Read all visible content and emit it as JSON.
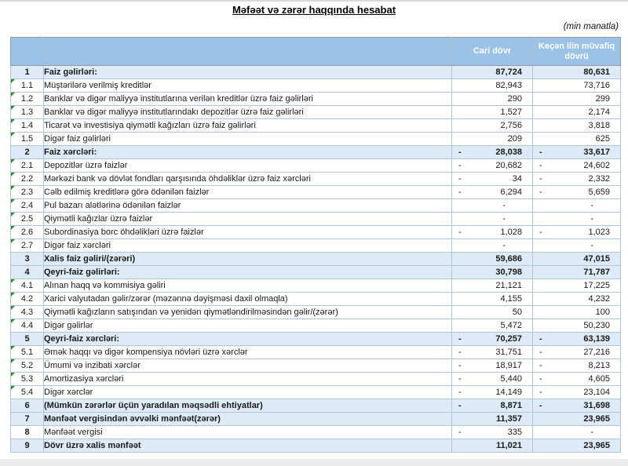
{
  "title": "Məfəət və zərər haqqında hesabat",
  "unit_note": "(min manatla)",
  "colors": {
    "header_bg": "#9CC2E5",
    "section_row_bg": "#DEEBF6",
    "header_text": "#FFFFFF",
    "marker_green": "#2E8B2E",
    "inner_border": "#B1C5D9",
    "outer_border": "#8F9CA8"
  },
  "table": {
    "header": {
      "col_number": "",
      "col_description": "",
      "col_current": "Cari dövr",
      "col_previous": "Keçən ilin müvafiq dövrü"
    },
    "rows": [
      {
        "num": "1",
        "label": "Faiz gəlirləri:",
        "style": "section",
        "marker": false,
        "c1": {
          "sign": "",
          "value": "87,724"
        },
        "c2": {
          "sign": "",
          "value": "80,631"
        }
      },
      {
        "num": "1.1",
        "label": "Müştərilərə verilmiş kreditlər",
        "style": "detail",
        "marker": true,
        "c1": {
          "sign": "",
          "value": "82,943"
        },
        "c2": {
          "sign": "",
          "value": "73,716"
        }
      },
      {
        "num": "1.2",
        "label": "Banklar və digər maliyyə institutlarına verilən kreditlər üzrə faiz gəlirləri",
        "style": "detail",
        "marker": true,
        "c1": {
          "sign": "",
          "value": "290"
        },
        "c2": {
          "sign": "",
          "value": "299"
        }
      },
      {
        "num": "1.3",
        "label": "Banklar və digər maliyyə institutlarındakı depozitlər üzrə faiz gəlirləri",
        "style": "detail",
        "marker": true,
        "c1": {
          "sign": "",
          "value": "1,527"
        },
        "c2": {
          "sign": "",
          "value": "2,174"
        }
      },
      {
        "num": "1.4",
        "label": "Ticarət və investisiya qiymətli kağızları üzrə faiz gəlirləri",
        "style": "detail",
        "marker": true,
        "c1": {
          "sign": "",
          "value": "2,756"
        },
        "c2": {
          "sign": "",
          "value": "3,818"
        }
      },
      {
        "num": "1.5",
        "label": "Digər faiz gəlirləri",
        "style": "detail",
        "marker": true,
        "c1": {
          "sign": "",
          "value": "209"
        },
        "c2": {
          "sign": "",
          "value": "625"
        }
      },
      {
        "num": "2",
        "label": "Faiz xərcləri:",
        "style": "section",
        "marker": false,
        "c1": {
          "sign": "-",
          "value": "28,038"
        },
        "c2": {
          "sign": "-",
          "value": "33,617"
        }
      },
      {
        "num": "2.1",
        "label": "Depozitlər üzrə faizlər",
        "style": "detail",
        "marker": true,
        "c1": {
          "sign": "-",
          "value": "20,682"
        },
        "c2": {
          "sign": "-",
          "value": "24,602"
        }
      },
      {
        "num": "2.2",
        "label": "Mərkəzi bank və dövlət fondları qarşısında öhdəliklər üzrə faiz xərcləri",
        "style": "detail",
        "marker": true,
        "c1": {
          "sign": "-",
          "value": "34"
        },
        "c2": {
          "sign": "-",
          "value": "2,332"
        }
      },
      {
        "num": "2.3",
        "label": "Cəlb edilmiş kreditlərə görə ödənilən faizlər",
        "style": "detail",
        "marker": true,
        "c1": {
          "sign": "-",
          "value": "6,294"
        },
        "c2": {
          "sign": "-",
          "value": "5,659"
        }
      },
      {
        "num": "2.4",
        "label": "Pul bazarı alətlərinə ödənilən faizlər",
        "style": "detail",
        "marker": true,
        "c1": {
          "sign": "",
          "value": "-",
          "zero": true
        },
        "c2": {
          "sign": "",
          "value": "-",
          "zero": true
        }
      },
      {
        "num": "2.5",
        "label": "Qiymətli kağızlar üzrə faizlər",
        "style": "detail",
        "marker": true,
        "c1": {
          "sign": "",
          "value": "-",
          "zero": true
        },
        "c2": {
          "sign": "",
          "value": "-",
          "zero": true
        }
      },
      {
        "num": "2.6",
        "label": "Subordinasiya borc öhdəlikləri üzrə faizlər",
        "style": "detail",
        "marker": true,
        "c1": {
          "sign": "-",
          "value": "1,028"
        },
        "c2": {
          "sign": "-",
          "value": "1,023"
        }
      },
      {
        "num": "2.7",
        "label": "Digər faiz xərcləri",
        "style": "detail",
        "marker": true,
        "c1": {
          "sign": "",
          "value": "-",
          "zero": true
        },
        "c2": {
          "sign": "",
          "value": "-",
          "zero": true
        }
      },
      {
        "num": "3",
        "label": "Xalis faiz gəliri/(zərəri)",
        "style": "section",
        "marker": false,
        "c1": {
          "sign": "",
          "value": "59,686"
        },
        "c2": {
          "sign": "",
          "value": "47,015"
        }
      },
      {
        "num": "4",
        "label": "Qeyri-faiz gəlirləri:",
        "style": "section",
        "marker": false,
        "c1": {
          "sign": "",
          "value": "30,798"
        },
        "c2": {
          "sign": "",
          "value": "71,787"
        }
      },
      {
        "num": "4.1",
        "label": "Alınan haqq və kommisiya gəliri",
        "style": "detail",
        "marker": true,
        "c1": {
          "sign": "",
          "value": "21,121"
        },
        "c2": {
          "sign": "",
          "value": "17,225"
        }
      },
      {
        "num": "4.2",
        "label": "Xarici valyutadan gəlir/zərər (məzənnə dəyişməsi daxil olmaqla)",
        "style": "detail",
        "marker": true,
        "c1": {
          "sign": "",
          "value": "4,155"
        },
        "c2": {
          "sign": "",
          "value": "4,232"
        }
      },
      {
        "num": "4.3",
        "label": "Qiymətli kağızların satışından və yenidən qiymətləndirilməsindən gəlir/(zərər)",
        "style": "detail",
        "marker": true,
        "c1": {
          "sign": "",
          "value": "50"
        },
        "c2": {
          "sign": "",
          "value": "100"
        }
      },
      {
        "num": "4.4",
        "label": "Digər gəlirlər",
        "style": "detail",
        "marker": true,
        "c1": {
          "sign": "",
          "value": "5,472"
        },
        "c2": {
          "sign": "",
          "value": "50,230"
        }
      },
      {
        "num": "5",
        "label": "Qeyri-faiz xərcləri:",
        "style": "section",
        "marker": false,
        "c1": {
          "sign": "-",
          "value": "70,257"
        },
        "c2": {
          "sign": "-",
          "value": "63,139"
        }
      },
      {
        "num": "5.1",
        "label": "Əmək haqqı və digər kompensiya növləri üzrə xərclər",
        "style": "detail",
        "marker": true,
        "c1": {
          "sign": "-",
          "value": "31,751"
        },
        "c2": {
          "sign": "-",
          "value": "27,216"
        }
      },
      {
        "num": "5.2",
        "label": "Ümumi və inzibati xərclər",
        "style": "detail",
        "marker": true,
        "c1": {
          "sign": "-",
          "value": "18,917"
        },
        "c2": {
          "sign": "-",
          "value": "8,213"
        }
      },
      {
        "num": "5.3",
        "label": "Amortizasiya xərcləri",
        "style": "detail",
        "marker": true,
        "c1": {
          "sign": "-",
          "value": "5,440"
        },
        "c2": {
          "sign": "-",
          "value": "4,605"
        }
      },
      {
        "num": "5.4",
        "label": "Digər xərclər",
        "style": "detail",
        "marker": true,
        "c1": {
          "sign": "-",
          "value": "14,149"
        },
        "c2": {
          "sign": "-",
          "value": "23,104"
        }
      },
      {
        "num": "6",
        "label": "(Mümkün zərərlər üçün yaradılan məqsədli ehtiyatlar)",
        "style": "section",
        "marker": false,
        "c1": {
          "sign": "-",
          "value": "8,871"
        },
        "c2": {
          "sign": "-",
          "value": "31,698"
        }
      },
      {
        "num": "7",
        "label": "Mənfəət vergisindən əvvəlki mənfəət(zərər)",
        "style": "section",
        "marker": false,
        "c1": {
          "sign": "",
          "value": "11,357"
        },
        "c2": {
          "sign": "",
          "value": "23,965"
        }
      },
      {
        "num": "8",
        "label": "Mənfəət vergisi",
        "style": "tax",
        "marker": false,
        "c1": {
          "sign": "-",
          "value": "335"
        },
        "c2": {
          "sign": "",
          "value": "-",
          "zero": true
        }
      },
      {
        "num": "9",
        "label": "Dövr üzrə xalis mənfəət",
        "style": "section",
        "marker": false,
        "c1": {
          "sign": "",
          "value": "11,021"
        },
        "c2": {
          "sign": "",
          "value": "23,965"
        }
      }
    ]
  }
}
